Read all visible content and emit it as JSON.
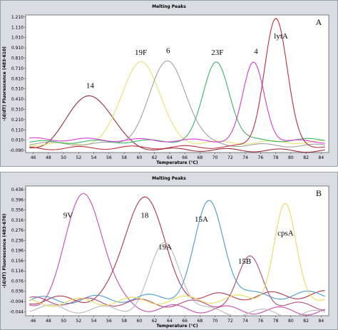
{
  "chart_data": [
    {
      "panel": "A",
      "type": "line",
      "title": "Melting Peaks",
      "xlabel": "Temperature (°C)",
      "ylabel": "-(d/dT) Fluorescence (483-610)",
      "xlim": [
        45,
        85
      ],
      "ylim": [
        -0.11,
        1.23
      ],
      "xticks": [
        "46",
        "48",
        "50",
        "52",
        "54",
        "56",
        "58",
        "60",
        "62",
        "64",
        "66",
        "68",
        "70",
        "72",
        "74",
        "76",
        "78",
        "80",
        "82",
        "84"
      ],
      "yticks": [
        "1.210",
        "1.110",
        "1.010",
        "0.910",
        "0.810",
        "0.710",
        "0.610",
        "0.510",
        "0.410",
        "0.310",
        "0.210",
        "0.110",
        "0.010",
        "-0.090"
      ],
      "series": [
        {
          "label": "14",
          "color": "#9b2a3a",
          "center": 53.5,
          "peak": 0.46,
          "width": 2.8,
          "base": -0.07,
          "label_xy": [
            53.5,
            0.52
          ]
        },
        {
          "label": "19F",
          "color": "#e3e36a",
          "center": 60.2,
          "peak": 0.78,
          "width": 2.4,
          "base": -0.03,
          "label_xy": [
            60.2,
            0.84
          ]
        },
        {
          "label": "6",
          "color": "#a0a0a0",
          "center": 63.8,
          "peak": 0.79,
          "width": 2.4,
          "base": -0.02,
          "label_xy": [
            63.8,
            0.86
          ]
        },
        {
          "label": "23F",
          "color": "#3ab56a",
          "center": 70.2,
          "peak": 0.76,
          "width": 1.7,
          "base": -0.01,
          "label_xy": [
            70.3,
            0.84
          ]
        },
        {
          "label": "4",
          "color": "#d43ad4",
          "center": 75.1,
          "peak": 0.78,
          "width": 1.4,
          "base": 0.02,
          "label_xy": [
            75.4,
            0.85
          ]
        },
        {
          "label": "lytA",
          "color": "#c0303a",
          "center": 78.0,
          "peak": 1.18,
          "width": 1.5,
          "base": -0.07,
          "label_xy": [
            78.7,
            1.0
          ]
        }
      ],
      "letter": "A"
    },
    {
      "panel": "B",
      "type": "line",
      "title": "Melting Peaks",
      "xlabel": "Temperature (°C)",
      "ylabel": "-(d/dT) Fluorescence (483-670)",
      "xlim": [
        45,
        85
      ],
      "ylim": [
        -0.06,
        0.45
      ],
      "xticks": [
        "46",
        "48",
        "50",
        "52",
        "54",
        "56",
        "58",
        "60",
        "62",
        "64",
        "66",
        "68",
        "70",
        "72",
        "74",
        "76",
        "78",
        "80",
        "82",
        "84"
      ],
      "yticks": [
        "0.436",
        "0.396",
        "0.356",
        "0.316",
        "0.276",
        "0.236",
        "0.196",
        "0.156",
        "0.116",
        "0.076",
        "0.036",
        "-0.004",
        "-0.044"
      ],
      "series": [
        {
          "label": "9V",
          "color": "#c84ab8",
          "center": 52.8,
          "peak": 0.43,
          "width": 2.4,
          "base": -0.02,
          "label_xy": [
            50.6,
            0.325
          ]
        },
        {
          "label": "18",
          "color": "#b23545",
          "center": 60.6,
          "peak": 0.41,
          "width": 2.4,
          "base": 0.0,
          "label_xy": [
            60.7,
            0.325
          ]
        },
        {
          "label": "19A",
          "color": "#b9b9b9",
          "center": 63.5,
          "peak": 0.23,
          "width": 2.0,
          "base": -0.03,
          "label_xy": [
            63.4,
            0.2
          ]
        },
        {
          "label": "15A",
          "color": "#4a9ad4",
          "center": 69.3,
          "peak": 0.37,
          "width": 1.9,
          "base": 0.0,
          "label_xy": [
            68.2,
            0.31
          ]
        },
        {
          "label": "15B",
          "color": "#b04a7a",
          "center": 74.7,
          "peak": 0.18,
          "width": 1.6,
          "base": 0.0,
          "label_xy": [
            73.9,
            0.145
          ]
        },
        {
          "label": "cpsA",
          "color": "#e8dc5a",
          "center": 79.2,
          "peak": 0.35,
          "width": 1.4,
          "base": -0.01,
          "label_xy": [
            79.3,
            0.255
          ]
        }
      ],
      "letter": "B"
    }
  ]
}
